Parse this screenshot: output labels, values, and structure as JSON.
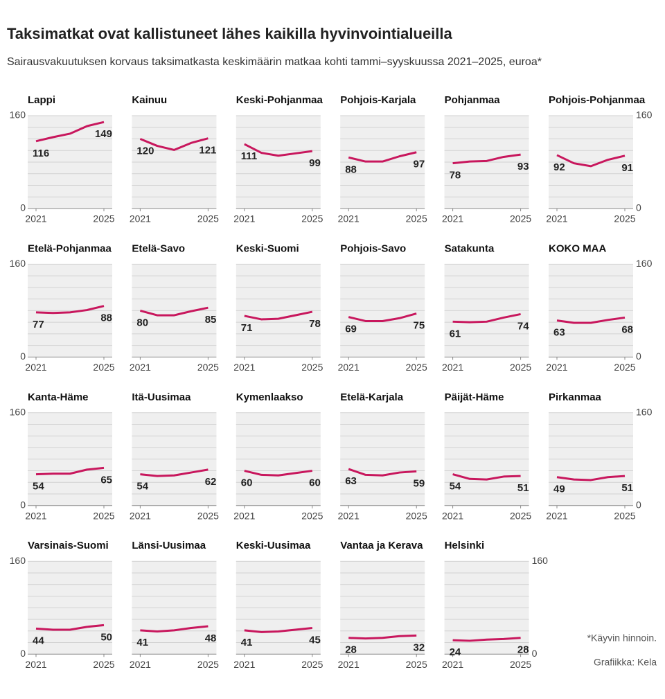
{
  "title": "Taksimatkat ovat kallistuneet lähes kaikilla hyvinvointialueilla",
  "subtitle": "Sairausvakuutuksen korvaus taksimatkasta keskimäärin matkaa kohti tammi–syyskuussa 2021–2025, euroa*",
  "footnote": "*Käyvin hinnoin.",
  "credit": "Grafiikka: Kela",
  "chart_data": [
    {
      "type": "line",
      "title": "Lappi",
      "y_labels": "left",
      "x": [
        2021,
        2022,
        2023,
        2024,
        2025
      ],
      "xlim": [
        2021,
        2025
      ],
      "xticks": [
        2021,
        2025
      ],
      "ylim": [
        0,
        160
      ],
      "yticks": [
        0,
        160
      ],
      "grid": true,
      "series": [
        {
          "color": "#c8175d",
          "values": [
            116,
            123,
            129,
            142,
            149
          ]
        }
      ]
    },
    {
      "type": "line",
      "title": "Kainuu",
      "x": [
        2021,
        2022,
        2023,
        2024,
        2025
      ],
      "xlim": [
        2021,
        2025
      ],
      "xticks": [
        2021,
        2025
      ],
      "ylim": [
        0,
        160
      ],
      "yticks": [
        0,
        160
      ],
      "grid": true,
      "series": [
        {
          "color": "#c8175d",
          "values": [
            120,
            108,
            101,
            113,
            121
          ]
        }
      ]
    },
    {
      "type": "line",
      "title": "Keski-Pohjanmaa",
      "x": [
        2021,
        2022,
        2023,
        2024,
        2025
      ],
      "xlim": [
        2021,
        2025
      ],
      "xticks": [
        2021,
        2025
      ],
      "ylim": [
        0,
        160
      ],
      "yticks": [
        0,
        160
      ],
      "grid": true,
      "series": [
        {
          "color": "#c8175d",
          "values": [
            111,
            96,
            91,
            95,
            99
          ]
        }
      ]
    },
    {
      "type": "line",
      "title": "Pohjois-Karjala",
      "x": [
        2021,
        2022,
        2023,
        2024,
        2025
      ],
      "xlim": [
        2021,
        2025
      ],
      "xticks": [
        2021,
        2025
      ],
      "ylim": [
        0,
        160
      ],
      "yticks": [
        0,
        160
      ],
      "grid": true,
      "series": [
        {
          "color": "#c8175d",
          "values": [
            88,
            81,
            81,
            90,
            97
          ]
        }
      ]
    },
    {
      "type": "line",
      "title": "Pohjanmaa",
      "x": [
        2021,
        2022,
        2023,
        2024,
        2025
      ],
      "xlim": [
        2021,
        2025
      ],
      "xticks": [
        2021,
        2025
      ],
      "ylim": [
        0,
        160
      ],
      "yticks": [
        0,
        160
      ],
      "grid": true,
      "series": [
        {
          "color": "#c8175d",
          "values": [
            78,
            81,
            82,
            89,
            93
          ]
        }
      ]
    },
    {
      "type": "line",
      "title": "Pohjois-Pohjanmaa",
      "y_labels": "right",
      "x": [
        2021,
        2022,
        2023,
        2024,
        2025
      ],
      "xlim": [
        2021,
        2025
      ],
      "xticks": [
        2021,
        2025
      ],
      "ylim": [
        0,
        160
      ],
      "yticks": [
        0,
        160
      ],
      "grid": true,
      "series": [
        {
          "color": "#c8175d",
          "values": [
            92,
            78,
            73,
            84,
            91
          ]
        }
      ]
    },
    {
      "type": "line",
      "title": "Etelä-Pohjanmaa",
      "y_labels": "left",
      "x": [
        2021,
        2022,
        2023,
        2024,
        2025
      ],
      "xlim": [
        2021,
        2025
      ],
      "xticks": [
        2021,
        2025
      ],
      "ylim": [
        0,
        160
      ],
      "yticks": [
        0,
        160
      ],
      "grid": true,
      "series": [
        {
          "color": "#c8175d",
          "values": [
            77,
            76,
            77,
            81,
            88
          ]
        }
      ]
    },
    {
      "type": "line",
      "title": "Etelä-Savo",
      "x": [
        2021,
        2022,
        2023,
        2024,
        2025
      ],
      "xlim": [
        2021,
        2025
      ],
      "xticks": [
        2021,
        2025
      ],
      "ylim": [
        0,
        160
      ],
      "yticks": [
        0,
        160
      ],
      "grid": true,
      "series": [
        {
          "color": "#c8175d",
          "values": [
            80,
            72,
            72,
            79,
            85
          ]
        }
      ]
    },
    {
      "type": "line",
      "title": "Keski-Suomi",
      "x": [
        2021,
        2022,
        2023,
        2024,
        2025
      ],
      "xlim": [
        2021,
        2025
      ],
      "xticks": [
        2021,
        2025
      ],
      "ylim": [
        0,
        160
      ],
      "yticks": [
        0,
        160
      ],
      "grid": true,
      "series": [
        {
          "color": "#c8175d",
          "values": [
            71,
            65,
            66,
            72,
            78
          ]
        }
      ]
    },
    {
      "type": "line",
      "title": "Pohjois-Savo",
      "x": [
        2021,
        2022,
        2023,
        2024,
        2025
      ],
      "xlim": [
        2021,
        2025
      ],
      "xticks": [
        2021,
        2025
      ],
      "ylim": [
        0,
        160
      ],
      "yticks": [
        0,
        160
      ],
      "grid": true,
      "series": [
        {
          "color": "#c8175d",
          "values": [
            69,
            62,
            62,
            67,
            75
          ]
        }
      ]
    },
    {
      "type": "line",
      "title": "Satakunta",
      "x": [
        2021,
        2022,
        2023,
        2024,
        2025
      ],
      "xlim": [
        2021,
        2025
      ],
      "xticks": [
        2021,
        2025
      ],
      "ylim": [
        0,
        160
      ],
      "yticks": [
        0,
        160
      ],
      "grid": true,
      "series": [
        {
          "color": "#c8175d",
          "values": [
            61,
            60,
            61,
            68,
            74
          ]
        }
      ]
    },
    {
      "type": "line",
      "title": "KOKO MAA",
      "y_labels": "right",
      "x": [
        2021,
        2022,
        2023,
        2024,
        2025
      ],
      "xlim": [
        2021,
        2025
      ],
      "xticks": [
        2021,
        2025
      ],
      "ylim": [
        0,
        160
      ],
      "yticks": [
        0,
        160
      ],
      "grid": true,
      "series": [
        {
          "color": "#c8175d",
          "values": [
            63,
            59,
            59,
            64,
            68
          ]
        }
      ]
    },
    {
      "type": "line",
      "title": "Kanta-Häme",
      "y_labels": "left",
      "x": [
        2021,
        2022,
        2023,
        2024,
        2025
      ],
      "xlim": [
        2021,
        2025
      ],
      "xticks": [
        2021,
        2025
      ],
      "ylim": [
        0,
        160
      ],
      "yticks": [
        0,
        160
      ],
      "grid": true,
      "series": [
        {
          "color": "#c8175d",
          "values": [
            54,
            55,
            55,
            62,
            65
          ]
        }
      ]
    },
    {
      "type": "line",
      "title": "Itä-Uusimaa",
      "x": [
        2021,
        2022,
        2023,
        2024,
        2025
      ],
      "xlim": [
        2021,
        2025
      ],
      "xticks": [
        2021,
        2025
      ],
      "ylim": [
        0,
        160
      ],
      "yticks": [
        0,
        160
      ],
      "grid": true,
      "series": [
        {
          "color": "#c8175d",
          "values": [
            54,
            51,
            52,
            57,
            62
          ]
        }
      ]
    },
    {
      "type": "line",
      "title": "Kymenlaakso",
      "x": [
        2021,
        2022,
        2023,
        2024,
        2025
      ],
      "xlim": [
        2021,
        2025
      ],
      "xticks": [
        2021,
        2025
      ],
      "ylim": [
        0,
        160
      ],
      "yticks": [
        0,
        160
      ],
      "grid": true,
      "series": [
        {
          "color": "#c8175d",
          "values": [
            60,
            53,
            52,
            56,
            60
          ]
        }
      ]
    },
    {
      "type": "line",
      "title": "Etelä-Karjala",
      "x": [
        2021,
        2022,
        2023,
        2024,
        2025
      ],
      "xlim": [
        2021,
        2025
      ],
      "xticks": [
        2021,
        2025
      ],
      "ylim": [
        0,
        160
      ],
      "yticks": [
        0,
        160
      ],
      "grid": true,
      "series": [
        {
          "color": "#c8175d",
          "values": [
            63,
            53,
            52,
            57,
            59
          ]
        }
      ]
    },
    {
      "type": "line",
      "title": "Päijät-Häme",
      "x": [
        2021,
        2022,
        2023,
        2024,
        2025
      ],
      "xlim": [
        2021,
        2025
      ],
      "xticks": [
        2021,
        2025
      ],
      "ylim": [
        0,
        160
      ],
      "yticks": [
        0,
        160
      ],
      "grid": true,
      "series": [
        {
          "color": "#c8175d",
          "values": [
            54,
            46,
            45,
            50,
            51
          ]
        }
      ]
    },
    {
      "type": "line",
      "title": "Pirkanmaa",
      "y_labels": "right",
      "x": [
        2021,
        2022,
        2023,
        2024,
        2025
      ],
      "xlim": [
        2021,
        2025
      ],
      "xticks": [
        2021,
        2025
      ],
      "ylim": [
        0,
        160
      ],
      "yticks": [
        0,
        160
      ],
      "grid": true,
      "series": [
        {
          "color": "#c8175d",
          "values": [
            49,
            45,
            44,
            49,
            51
          ]
        }
      ]
    },
    {
      "type": "line",
      "title": "Varsinais-Suomi",
      "y_labels": "left",
      "x": [
        2021,
        2022,
        2023,
        2024,
        2025
      ],
      "xlim": [
        2021,
        2025
      ],
      "xticks": [
        2021,
        2025
      ],
      "ylim": [
        0,
        160
      ],
      "yticks": [
        0,
        160
      ],
      "grid": true,
      "series": [
        {
          "color": "#c8175d",
          "values": [
            44,
            42,
            42,
            47,
            50
          ]
        }
      ]
    },
    {
      "type": "line",
      "title": "Länsi-Uusimaa",
      "x": [
        2021,
        2022,
        2023,
        2024,
        2025
      ],
      "xlim": [
        2021,
        2025
      ],
      "xticks": [
        2021,
        2025
      ],
      "ylim": [
        0,
        160
      ],
      "yticks": [
        0,
        160
      ],
      "grid": true,
      "series": [
        {
          "color": "#c8175d",
          "values": [
            41,
            39,
            41,
            45,
            48
          ]
        }
      ]
    },
    {
      "type": "line",
      "title": "Keski-Uusimaa",
      "x": [
        2021,
        2022,
        2023,
        2024,
        2025
      ],
      "xlim": [
        2021,
        2025
      ],
      "xticks": [
        2021,
        2025
      ],
      "ylim": [
        0,
        160
      ],
      "yticks": [
        0,
        160
      ],
      "grid": true,
      "series": [
        {
          "color": "#c8175d",
          "values": [
            41,
            38,
            39,
            42,
            45
          ]
        }
      ]
    },
    {
      "type": "line",
      "title": "Vantaa ja Kerava",
      "x": [
        2021,
        2022,
        2023,
        2024,
        2025
      ],
      "xlim": [
        2021,
        2025
      ],
      "xticks": [
        2021,
        2025
      ],
      "ylim": [
        0,
        160
      ],
      "yticks": [
        0,
        160
      ],
      "grid": true,
      "series": [
        {
          "color": "#c8175d",
          "values": [
            28,
            27,
            28,
            31,
            32
          ]
        }
      ]
    },
    {
      "type": "line",
      "title": "Helsinki",
      "y_labels": "right",
      "x": [
        2021,
        2022,
        2023,
        2024,
        2025
      ],
      "xlim": [
        2021,
        2025
      ],
      "xticks": [
        2021,
        2025
      ],
      "ylim": [
        0,
        160
      ],
      "yticks": [
        0,
        160
      ],
      "grid": true,
      "series": [
        {
          "color": "#c8175d",
          "values": [
            24,
            23,
            25,
            26,
            28
          ]
        }
      ]
    }
  ]
}
